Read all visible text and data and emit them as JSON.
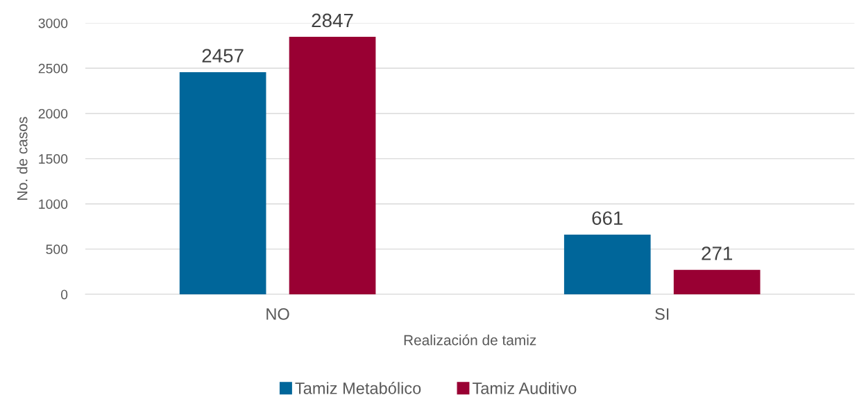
{
  "chart_data": {
    "type": "bar",
    "xlabel": "Realización de tamiz",
    "ylabel": "No. de casos",
    "categories": [
      "NO",
      "SI"
    ],
    "series": [
      {
        "name": "Tamiz Metabólico",
        "color": "#00669a",
        "values": [
          2457,
          661
        ]
      },
      {
        "name": "Tamiz Auditivo",
        "color": "#990033",
        "values": [
          2847,
          271
        ]
      }
    ],
    "ylim": [
      0,
      3000
    ],
    "yticks": [
      0,
      500,
      1000,
      1500,
      2000,
      2500,
      3000
    ],
    "grid": "y",
    "legend": "bottom",
    "data_labels": true
  }
}
